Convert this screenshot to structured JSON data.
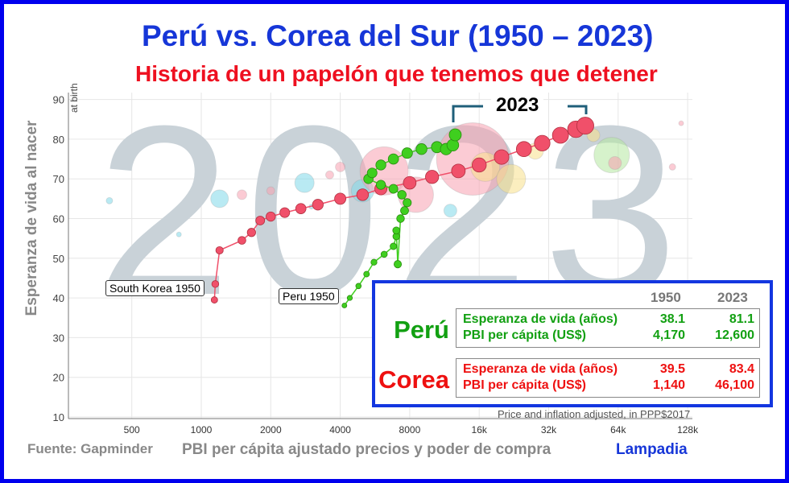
{
  "header": {
    "title": "Perú vs. Corea del Sur (1950 – 2023)",
    "subtitle": "Historia de un papelón que tenemos que detener"
  },
  "footer": {
    "source": "Fuente: Gapminder",
    "brand": "Lampadia"
  },
  "table": {
    "years": [
      "1950",
      "2023"
    ],
    "countries": [
      {
        "name": "Perú",
        "color": "#12a012",
        "rows": [
          {
            "label": "Esperanza de vida (años)",
            "v1950": "38.1",
            "v2023": "81.1"
          },
          {
            "label": "PBI per cápita (US$)",
            "v1950": "4,170",
            "v2023": "12,600"
          }
        ]
      },
      {
        "name": "Corea",
        "color": "#ee1010",
        "rows": [
          {
            "label": "Esperanza de vida (años)",
            "v1950": "39.5",
            "v2023": "83.4"
          },
          {
            "label": "PBI per cápita (US$)",
            "v1950": "1,140",
            "v2023": "46,100"
          }
        ]
      }
    ]
  },
  "chart_data": {
    "type": "scatter",
    "xscale": "log",
    "xlabel": "PBI per cápita ajustado precios y poder de compra",
    "ylabel": "Esperanza de vida al nacer",
    "ylabel_small": "at birth",
    "x_note": "Price and inflation adjusted, in PPP$2017",
    "xlim": [
      250,
      150000
    ],
    "ylim": [
      10,
      90
    ],
    "xticks": [
      500,
      1000,
      2000,
      4000,
      8000,
      16000,
      32000,
      64000,
      128000
    ],
    "xtick_labels": [
      "500",
      "1000",
      "2000",
      "4000",
      "8000",
      "16k",
      "32k",
      "64k",
      "128k"
    ],
    "yticks": [
      10,
      20,
      30,
      40,
      50,
      60,
      70,
      80,
      90
    ],
    "watermark": "2023",
    "year_marker": "2023",
    "series": [
      {
        "name": "Corea del Sur",
        "label": "South Korea 1950",
        "color": "#f0506a",
        "points": [
          [
            1140,
            39.5
          ],
          [
            1150,
            43.5
          ],
          [
            1200,
            52
          ],
          [
            1500,
            54.5
          ],
          [
            1650,
            56.5
          ],
          [
            1800,
            59.5
          ],
          [
            2000,
            60.5
          ],
          [
            2300,
            61.5
          ],
          [
            2700,
            62.5
          ],
          [
            3200,
            63.5
          ],
          [
            4000,
            65
          ],
          [
            5000,
            66
          ],
          [
            6000,
            67.5
          ],
          [
            8000,
            69
          ],
          [
            10000,
            70.5
          ],
          [
            13000,
            72
          ],
          [
            16000,
            73.5
          ],
          [
            20000,
            75.5
          ],
          [
            25000,
            77.5
          ],
          [
            30000,
            79
          ],
          [
            36000,
            81
          ],
          [
            42000,
            82.5
          ],
          [
            46100,
            83.4
          ]
        ]
      },
      {
        "name": "Perú",
        "label": "Peru 1950",
        "color": "#3fcf1f",
        "points": [
          [
            4170,
            38.1
          ],
          [
            4400,
            40
          ],
          [
            4800,
            43
          ],
          [
            5200,
            46
          ],
          [
            5600,
            49
          ],
          [
            6200,
            51
          ],
          [
            6800,
            53
          ],
          [
            7000,
            55.5
          ],
          [
            7000,
            57
          ],
          [
            7100,
            48.5
          ],
          [
            7300,
            60
          ],
          [
            7600,
            62
          ],
          [
            7800,
            64
          ],
          [
            7400,
            66
          ],
          [
            6800,
            67.5
          ],
          [
            6000,
            68.5
          ],
          [
            5300,
            70
          ],
          [
            5500,
            71.5
          ],
          [
            6000,
            73.5
          ],
          [
            6800,
            75
          ],
          [
            7800,
            76.5
          ],
          [
            9000,
            77.5
          ],
          [
            10500,
            78
          ],
          [
            11500,
            77.5
          ],
          [
            12300,
            78.5
          ],
          [
            12600,
            81.1
          ]
        ]
      }
    ],
    "background_bubbles": [
      [
        400,
        64.5,
        4,
        "#7fd8ea"
      ],
      [
        1200,
        65,
        11,
        "#7fd8ea"
      ],
      [
        1500,
        66,
        6,
        "#f7a0b0"
      ],
      [
        2800,
        69,
        12,
        "#7fd8ea"
      ],
      [
        3600,
        71,
        5,
        "#f7a0b0"
      ],
      [
        5000,
        67,
        14,
        "#7fd8ea"
      ],
      [
        6200,
        72,
        30,
        "#f7a0b0"
      ],
      [
        8500,
        66,
        22,
        "#f7a0b0"
      ],
      [
        15000,
        75,
        45,
        "#f7a0b0"
      ],
      [
        17000,
        73,
        18,
        "#f7e08a"
      ],
      [
        22000,
        70,
        18,
        "#f7e08a"
      ],
      [
        28000,
        77,
        10,
        "#f7e08a"
      ],
      [
        60000,
        76,
        22,
        "#b5e8a0"
      ],
      [
        50000,
        81,
        8,
        "#f7e08a"
      ],
      [
        62000,
        74,
        8,
        "#f7a0b0"
      ],
      [
        110000,
        73,
        4,
        "#f7a0b0"
      ],
      [
        12000,
        62,
        8,
        "#7fd8ea"
      ],
      [
        3000,
        63,
        3,
        "#7fd8ea"
      ],
      [
        800,
        56,
        3,
        "#7fd8ea"
      ],
      [
        4000,
        73,
        6,
        "#f7a0b0"
      ],
      [
        2000,
        67,
        5,
        "#f7a0b0"
      ],
      [
        120000,
        84,
        3,
        "#f7a0b0"
      ]
    ]
  }
}
